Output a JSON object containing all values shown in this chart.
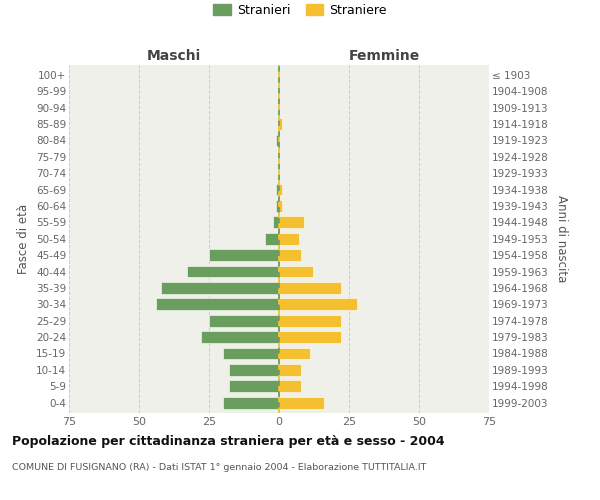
{
  "age_groups": [
    "0-4",
    "5-9",
    "10-14",
    "15-19",
    "20-24",
    "25-29",
    "30-34",
    "35-39",
    "40-44",
    "45-49",
    "50-54",
    "55-59",
    "60-64",
    "65-69",
    "70-74",
    "75-79",
    "80-84",
    "85-89",
    "90-94",
    "95-99",
    "100+"
  ],
  "birth_years": [
    "1999-2003",
    "1994-1998",
    "1989-1993",
    "1984-1988",
    "1979-1983",
    "1974-1978",
    "1969-1973",
    "1964-1968",
    "1959-1963",
    "1954-1958",
    "1949-1953",
    "1944-1948",
    "1939-1943",
    "1934-1938",
    "1929-1933",
    "1924-1928",
    "1919-1923",
    "1914-1918",
    "1909-1913",
    "1904-1908",
    "≤ 1903"
  ],
  "maschi": [
    20,
    18,
    18,
    20,
    28,
    25,
    44,
    42,
    33,
    25,
    5,
    2,
    1,
    1,
    0,
    0,
    1,
    0,
    0,
    0,
    0
  ],
  "femmine": [
    16,
    8,
    8,
    11,
    22,
    22,
    28,
    22,
    12,
    8,
    7,
    9,
    1,
    1,
    0,
    0,
    0,
    1,
    0,
    0,
    0
  ],
  "color_maschi": "#6a9e5e",
  "color_femmine": "#f5c030",
  "label_maschi": "Maschi",
  "label_femmine": "Femmine",
  "ylabel_left": "Fasce di età",
  "ylabel_right": "Anni di nascita",
  "legend_maschi": "Stranieri",
  "legend_femmine": "Straniere",
  "title": "Popolazione per cittadinanza straniera per età e sesso - 2004",
  "subtitle": "COMUNE DI FUSIGNANO (RA) - Dati ISTAT 1° gennaio 2004 - Elaborazione TUTTITALIA.IT",
  "xlim": 75,
  "bg_color": "#f0f0eb",
  "grid_color": "#cccccc"
}
